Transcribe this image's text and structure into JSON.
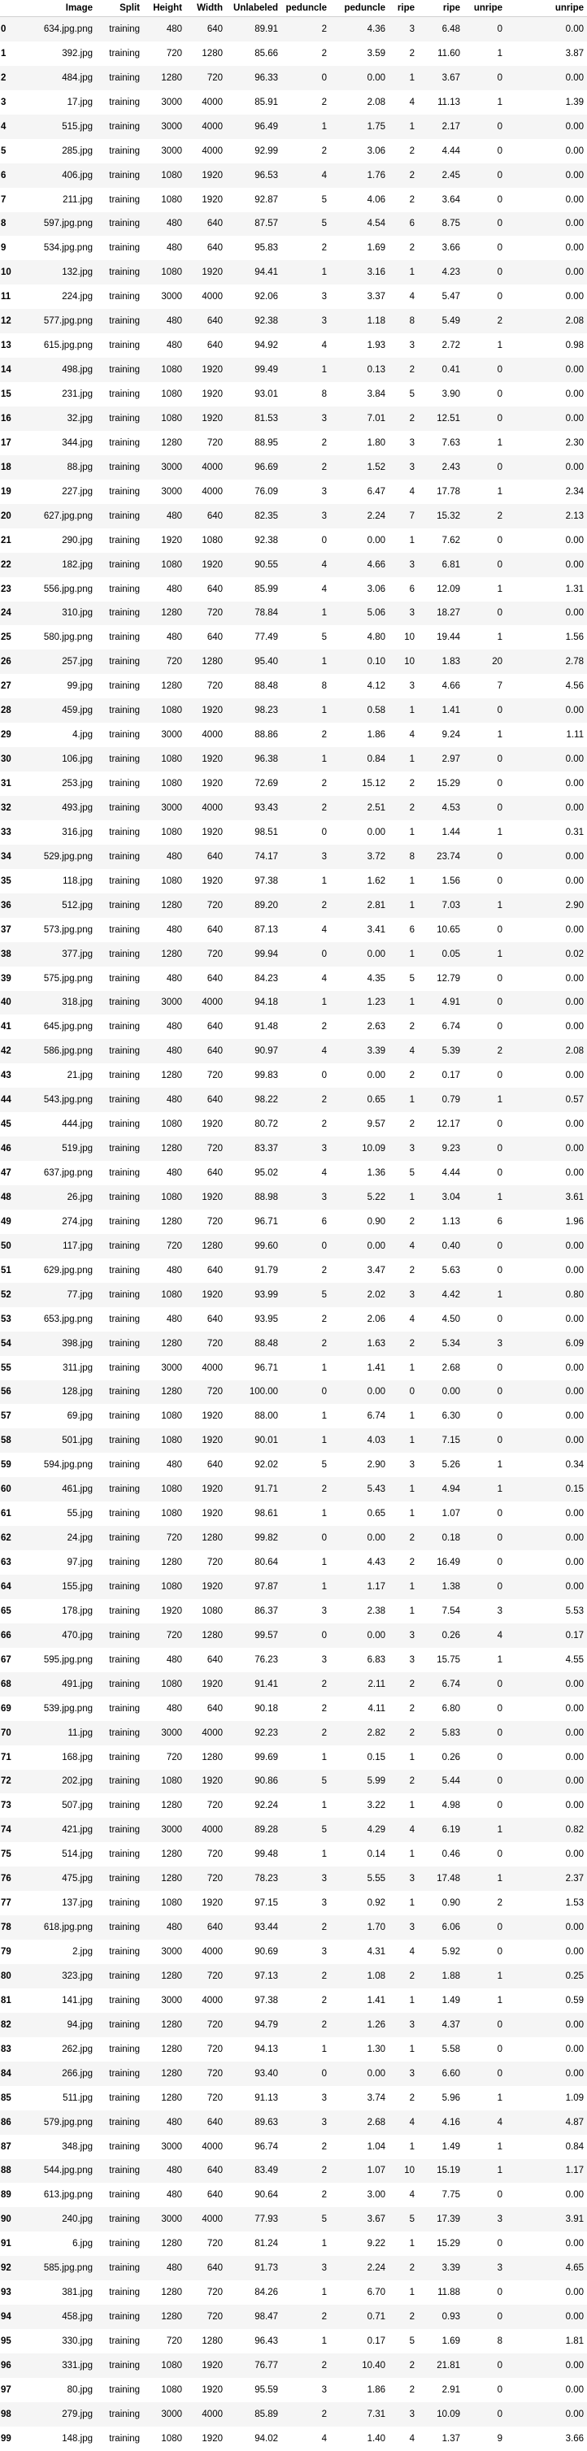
{
  "columns": [
    "",
    "Image",
    "Split",
    "Height",
    "Width",
    "Unlabeled",
    "peduncle",
    "peduncle",
    "ripe",
    "ripe",
    "unripe",
    "unripe"
  ],
  "rows": [
    [
      "0",
      "634.jpg.png",
      "training",
      "480",
      "640",
      "89.91",
      "2",
      "4.36",
      "3",
      "6.48",
      "0",
      "0.00"
    ],
    [
      "1",
      "392.jpg",
      "training",
      "720",
      "1280",
      "85.66",
      "2",
      "3.59",
      "2",
      "11.60",
      "1",
      "3.87"
    ],
    [
      "2",
      "484.jpg",
      "training",
      "1280",
      "720",
      "96.33",
      "0",
      "0.00",
      "1",
      "3.67",
      "0",
      "0.00"
    ],
    [
      "3",
      "17.jpg",
      "training",
      "3000",
      "4000",
      "85.91",
      "2",
      "2.08",
      "4",
      "11.13",
      "1",
      "1.39"
    ],
    [
      "4",
      "515.jpg",
      "training",
      "3000",
      "4000",
      "96.49",
      "1",
      "1.75",
      "1",
      "2.17",
      "0",
      "0.00"
    ],
    [
      "5",
      "285.jpg",
      "training",
      "3000",
      "4000",
      "92.99",
      "2",
      "3.06",
      "2",
      "4.44",
      "0",
      "0.00"
    ],
    [
      "6",
      "406.jpg",
      "training",
      "1080",
      "1920",
      "96.53",
      "4",
      "1.76",
      "2",
      "2.45",
      "0",
      "0.00"
    ],
    [
      "7",
      "211.jpg",
      "training",
      "1080",
      "1920",
      "92.87",
      "5",
      "4.06",
      "2",
      "3.64",
      "0",
      "0.00"
    ],
    [
      "8",
      "597.jpg.png",
      "training",
      "480",
      "640",
      "87.57",
      "5",
      "4.54",
      "6",
      "8.75",
      "0",
      "0.00"
    ],
    [
      "9",
      "534.jpg.png",
      "training",
      "480",
      "640",
      "95.83",
      "2",
      "1.69",
      "2",
      "3.66",
      "0",
      "0.00"
    ],
    [
      "10",
      "132.jpg",
      "training",
      "1080",
      "1920",
      "94.41",
      "1",
      "3.16",
      "1",
      "4.23",
      "0",
      "0.00"
    ],
    [
      "11",
      "224.jpg",
      "training",
      "3000",
      "4000",
      "92.06",
      "3",
      "3.37",
      "4",
      "5.47",
      "0",
      "0.00"
    ],
    [
      "12",
      "577.jpg.png",
      "training",
      "480",
      "640",
      "92.38",
      "3",
      "1.18",
      "8",
      "5.49",
      "2",
      "2.08"
    ],
    [
      "13",
      "615.jpg.png",
      "training",
      "480",
      "640",
      "94.92",
      "4",
      "1.93",
      "3",
      "2.72",
      "1",
      "0.98"
    ],
    [
      "14",
      "498.jpg",
      "training",
      "1080",
      "1920",
      "99.49",
      "1",
      "0.13",
      "2",
      "0.41",
      "0",
      "0.00"
    ],
    [
      "15",
      "231.jpg",
      "training",
      "1080",
      "1920",
      "93.01",
      "8",
      "3.84",
      "5",
      "3.90",
      "0",
      "0.00"
    ],
    [
      "16",
      "32.jpg",
      "training",
      "1080",
      "1920",
      "81.53",
      "3",
      "7.01",
      "2",
      "12.51",
      "0",
      "0.00"
    ],
    [
      "17",
      "344.jpg",
      "training",
      "1280",
      "720",
      "88.95",
      "2",
      "1.80",
      "3",
      "7.63",
      "1",
      "2.30"
    ],
    [
      "18",
      "88.jpg",
      "training",
      "3000",
      "4000",
      "96.69",
      "2",
      "1.52",
      "3",
      "2.43",
      "0",
      "0.00"
    ],
    [
      "19",
      "227.jpg",
      "training",
      "3000",
      "4000",
      "76.09",
      "3",
      "6.47",
      "4",
      "17.78",
      "1",
      "2.34"
    ],
    [
      "20",
      "627.jpg.png",
      "training",
      "480",
      "640",
      "82.35",
      "3",
      "2.24",
      "7",
      "15.32",
      "2",
      "2.13"
    ],
    [
      "21",
      "290.jpg",
      "training",
      "1920",
      "1080",
      "92.38",
      "0",
      "0.00",
      "1",
      "7.62",
      "0",
      "0.00"
    ],
    [
      "22",
      "182.jpg",
      "training",
      "1080",
      "1920",
      "90.55",
      "4",
      "4.66",
      "3",
      "6.81",
      "0",
      "0.00"
    ],
    [
      "23",
      "556.jpg.png",
      "training",
      "480",
      "640",
      "85.99",
      "4",
      "3.06",
      "6",
      "12.09",
      "1",
      "1.31"
    ],
    [
      "24",
      "310.jpg",
      "training",
      "1280",
      "720",
      "78.84",
      "1",
      "5.06",
      "3",
      "18.27",
      "0",
      "0.00"
    ],
    [
      "25",
      "580.jpg.png",
      "training",
      "480",
      "640",
      "77.49",
      "5",
      "4.80",
      "10",
      "19.44",
      "1",
      "1.56"
    ],
    [
      "26",
      "257.jpg",
      "training",
      "720",
      "1280",
      "95.40",
      "1",
      "0.10",
      "10",
      "1.83",
      "20",
      "2.78"
    ],
    [
      "27",
      "99.jpg",
      "training",
      "1280",
      "720",
      "88.48",
      "8",
      "4.12",
      "3",
      "4.66",
      "7",
      "4.56"
    ],
    [
      "28",
      "459.jpg",
      "training",
      "1080",
      "1920",
      "98.23",
      "1",
      "0.58",
      "1",
      "1.41",
      "0",
      "0.00"
    ],
    [
      "29",
      "4.jpg",
      "training",
      "3000",
      "4000",
      "88.86",
      "2",
      "1.86",
      "4",
      "9.24",
      "1",
      "1.11"
    ],
    [
      "30",
      "106.jpg",
      "training",
      "1080",
      "1920",
      "96.38",
      "1",
      "0.84",
      "1",
      "2.97",
      "0",
      "0.00"
    ],
    [
      "31",
      "253.jpg",
      "training",
      "1080",
      "1920",
      "72.69",
      "2",
      "15.12",
      "2",
      "15.29",
      "0",
      "0.00"
    ],
    [
      "32",
      "493.jpg",
      "training",
      "3000",
      "4000",
      "93.43",
      "2",
      "2.51",
      "2",
      "4.53",
      "0",
      "0.00"
    ],
    [
      "33",
      "316.jpg",
      "training",
      "1080",
      "1920",
      "98.51",
      "0",
      "0.00",
      "1",
      "1.44",
      "1",
      "0.31"
    ],
    [
      "34",
      "529.jpg.png",
      "training",
      "480",
      "640",
      "74.17",
      "3",
      "3.72",
      "8",
      "23.74",
      "0",
      "0.00"
    ],
    [
      "35",
      "118.jpg",
      "training",
      "1080",
      "1920",
      "97.38",
      "1",
      "1.62",
      "1",
      "1.56",
      "0",
      "0.00"
    ],
    [
      "36",
      "512.jpg",
      "training",
      "1280",
      "720",
      "89.20",
      "2",
      "2.81",
      "1",
      "7.03",
      "1",
      "2.90"
    ],
    [
      "37",
      "573.jpg.png",
      "training",
      "480",
      "640",
      "87.13",
      "4",
      "3.41",
      "6",
      "10.65",
      "0",
      "0.00"
    ],
    [
      "38",
      "377.jpg",
      "training",
      "1280",
      "720",
      "99.94",
      "0",
      "0.00",
      "1",
      "0.05",
      "1",
      "0.02"
    ],
    [
      "39",
      "575.jpg.png",
      "training",
      "480",
      "640",
      "84.23",
      "4",
      "4.35",
      "5",
      "12.79",
      "0",
      "0.00"
    ],
    [
      "40",
      "318.jpg",
      "training",
      "3000",
      "4000",
      "94.18",
      "1",
      "1.23",
      "1",
      "4.91",
      "0",
      "0.00"
    ],
    [
      "41",
      "645.jpg.png",
      "training",
      "480",
      "640",
      "91.48",
      "2",
      "2.63",
      "2",
      "6.74",
      "0",
      "0.00"
    ],
    [
      "42",
      "586.jpg.png",
      "training",
      "480",
      "640",
      "90.97",
      "4",
      "3.39",
      "4",
      "5.39",
      "2",
      "2.08"
    ],
    [
      "43",
      "21.jpg",
      "training",
      "1280",
      "720",
      "99.83",
      "0",
      "0.00",
      "2",
      "0.17",
      "0",
      "0.00"
    ],
    [
      "44",
      "543.jpg.png",
      "training",
      "480",
      "640",
      "98.22",
      "2",
      "0.65",
      "1",
      "0.79",
      "1",
      "0.57"
    ],
    [
      "45",
      "444.jpg",
      "training",
      "1080",
      "1920",
      "80.72",
      "2",
      "9.57",
      "2",
      "12.17",
      "0",
      "0.00"
    ],
    [
      "46",
      "519.jpg",
      "training",
      "1280",
      "720",
      "83.37",
      "3",
      "10.09",
      "3",
      "9.23",
      "0",
      "0.00"
    ],
    [
      "47",
      "637.jpg.png",
      "training",
      "480",
      "640",
      "95.02",
      "4",
      "1.36",
      "5",
      "4.44",
      "0",
      "0.00"
    ],
    [
      "48",
      "26.jpg",
      "training",
      "1080",
      "1920",
      "88.98",
      "3",
      "5.22",
      "1",
      "3.04",
      "1",
      "3.61"
    ],
    [
      "49",
      "274.jpg",
      "training",
      "1280",
      "720",
      "96.71",
      "6",
      "0.90",
      "2",
      "1.13",
      "6",
      "1.96"
    ],
    [
      "50",
      "117.jpg",
      "training",
      "720",
      "1280",
      "99.60",
      "0",
      "0.00",
      "4",
      "0.40",
      "0",
      "0.00"
    ],
    [
      "51",
      "629.jpg.png",
      "training",
      "480",
      "640",
      "91.79",
      "2",
      "3.47",
      "2",
      "5.63",
      "0",
      "0.00"
    ],
    [
      "52",
      "77.jpg",
      "training",
      "1080",
      "1920",
      "93.99",
      "5",
      "2.02",
      "3",
      "4.42",
      "1",
      "0.80"
    ],
    [
      "53",
      "653.jpg.png",
      "training",
      "480",
      "640",
      "93.95",
      "2",
      "2.06",
      "4",
      "4.50",
      "0",
      "0.00"
    ],
    [
      "54",
      "398.jpg",
      "training",
      "1280",
      "720",
      "88.48",
      "2",
      "1.63",
      "2",
      "5.34",
      "3",
      "6.09"
    ],
    [
      "55",
      "311.jpg",
      "training",
      "3000",
      "4000",
      "96.71",
      "1",
      "1.41",
      "1",
      "2.68",
      "0",
      "0.00"
    ],
    [
      "56",
      "128.jpg",
      "training",
      "1280",
      "720",
      "100.00",
      "0",
      "0.00",
      "0",
      "0.00",
      "0",
      "0.00"
    ],
    [
      "57",
      "69.jpg",
      "training",
      "1080",
      "1920",
      "88.00",
      "1",
      "6.74",
      "1",
      "6.30",
      "0",
      "0.00"
    ],
    [
      "58",
      "501.jpg",
      "training",
      "1080",
      "1920",
      "90.01",
      "1",
      "4.03",
      "1",
      "7.15",
      "0",
      "0.00"
    ],
    [
      "59",
      "594.jpg.png",
      "training",
      "480",
      "640",
      "92.02",
      "5",
      "2.90",
      "3",
      "5.26",
      "1",
      "0.34"
    ],
    [
      "60",
      "461.jpg",
      "training",
      "1080",
      "1920",
      "91.71",
      "2",
      "5.43",
      "1",
      "4.94",
      "1",
      "0.15"
    ],
    [
      "61",
      "55.jpg",
      "training",
      "1080",
      "1920",
      "98.61",
      "1",
      "0.65",
      "1",
      "1.07",
      "0",
      "0.00"
    ],
    [
      "62",
      "24.jpg",
      "training",
      "720",
      "1280",
      "99.82",
      "0",
      "0.00",
      "2",
      "0.18",
      "0",
      "0.00"
    ],
    [
      "63",
      "97.jpg",
      "training",
      "1280",
      "720",
      "80.64",
      "1",
      "4.43",
      "2",
      "16.49",
      "0",
      "0.00"
    ],
    [
      "64",
      "155.jpg",
      "training",
      "1080",
      "1920",
      "97.87",
      "1",
      "1.17",
      "1",
      "1.38",
      "0",
      "0.00"
    ],
    [
      "65",
      "178.jpg",
      "training",
      "1920",
      "1080",
      "86.37",
      "3",
      "2.38",
      "1",
      "7.54",
      "3",
      "5.53"
    ],
    [
      "66",
      "470.jpg",
      "training",
      "720",
      "1280",
      "99.57",
      "0",
      "0.00",
      "3",
      "0.26",
      "4",
      "0.17"
    ],
    [
      "67",
      "595.jpg.png",
      "training",
      "480",
      "640",
      "76.23",
      "3",
      "6.83",
      "3",
      "15.75",
      "1",
      "4.55"
    ],
    [
      "68",
      "491.jpg",
      "training",
      "1080",
      "1920",
      "91.41",
      "2",
      "2.11",
      "2",
      "6.74",
      "0",
      "0.00"
    ],
    [
      "69",
      "539.jpg.png",
      "training",
      "480",
      "640",
      "90.18",
      "2",
      "4.11",
      "2",
      "6.80",
      "0",
      "0.00"
    ],
    [
      "70",
      "11.jpg",
      "training",
      "3000",
      "4000",
      "92.23",
      "2",
      "2.82",
      "2",
      "5.83",
      "0",
      "0.00"
    ],
    [
      "71",
      "168.jpg",
      "training",
      "720",
      "1280",
      "99.69",
      "1",
      "0.15",
      "1",
      "0.26",
      "0",
      "0.00"
    ],
    [
      "72",
      "202.jpg",
      "training",
      "1080",
      "1920",
      "90.86",
      "5",
      "5.99",
      "2",
      "5.44",
      "0",
      "0.00"
    ],
    [
      "73",
      "507.jpg",
      "training",
      "1280",
      "720",
      "92.24",
      "1",
      "3.22",
      "1",
      "4.98",
      "0",
      "0.00"
    ],
    [
      "74",
      "421.jpg",
      "training",
      "3000",
      "4000",
      "89.28",
      "5",
      "4.29",
      "4",
      "6.19",
      "1",
      "0.82"
    ],
    [
      "75",
      "514.jpg",
      "training",
      "1280",
      "720",
      "99.48",
      "1",
      "0.14",
      "1",
      "0.46",
      "0",
      "0.00"
    ],
    [
      "76",
      "475.jpg",
      "training",
      "1280",
      "720",
      "78.23",
      "3",
      "5.55",
      "3",
      "17.48",
      "1",
      "2.37"
    ],
    [
      "77",
      "137.jpg",
      "training",
      "1080",
      "1920",
      "97.15",
      "3",
      "0.92",
      "1",
      "0.90",
      "2",
      "1.53"
    ],
    [
      "78",
      "618.jpg.png",
      "training",
      "480",
      "640",
      "93.44",
      "2",
      "1.70",
      "3",
      "6.06",
      "0",
      "0.00"
    ],
    [
      "79",
      "2.jpg",
      "training",
      "3000",
      "4000",
      "90.69",
      "3",
      "4.31",
      "4",
      "5.92",
      "0",
      "0.00"
    ],
    [
      "80",
      "323.jpg",
      "training",
      "1280",
      "720",
      "97.13",
      "2",
      "1.08",
      "2",
      "1.88",
      "1",
      "0.25"
    ],
    [
      "81",
      "141.jpg",
      "training",
      "3000",
      "4000",
      "97.38",
      "2",
      "1.41",
      "1",
      "1.49",
      "1",
      "0.59"
    ],
    [
      "82",
      "94.jpg",
      "training",
      "1280",
      "720",
      "94.79",
      "2",
      "1.26",
      "3",
      "4.37",
      "0",
      "0.00"
    ],
    [
      "83",
      "262.jpg",
      "training",
      "1280",
      "720",
      "94.13",
      "1",
      "1.30",
      "1",
      "5.58",
      "0",
      "0.00"
    ],
    [
      "84",
      "266.jpg",
      "training",
      "1280",
      "720",
      "93.40",
      "0",
      "0.00",
      "3",
      "6.60",
      "0",
      "0.00"
    ],
    [
      "85",
      "511.jpg",
      "training",
      "1280",
      "720",
      "91.13",
      "3",
      "3.74",
      "2",
      "5.96",
      "1",
      "1.09"
    ],
    [
      "86",
      "579.jpg.png",
      "training",
      "480",
      "640",
      "89.63",
      "3",
      "2.68",
      "4",
      "4.16",
      "4",
      "4.87"
    ],
    [
      "87",
      "348.jpg",
      "training",
      "3000",
      "4000",
      "96.74",
      "2",
      "1.04",
      "1",
      "1.49",
      "1",
      "0.84"
    ],
    [
      "88",
      "544.jpg.png",
      "training",
      "480",
      "640",
      "83.49",
      "2",
      "1.07",
      "10",
      "15.19",
      "1",
      "1.17"
    ],
    [
      "89",
      "613.jpg.png",
      "training",
      "480",
      "640",
      "90.64",
      "2",
      "3.00",
      "4",
      "7.75",
      "0",
      "0.00"
    ],
    [
      "90",
      "240.jpg",
      "training",
      "3000",
      "4000",
      "77.93",
      "5",
      "3.67",
      "5",
      "17.39",
      "3",
      "3.91"
    ],
    [
      "91",
      "6.jpg",
      "training",
      "1280",
      "720",
      "81.24",
      "1",
      "9.22",
      "1",
      "15.29",
      "0",
      "0.00"
    ],
    [
      "92",
      "585.jpg.png",
      "training",
      "480",
      "640",
      "91.73",
      "3",
      "2.24",
      "2",
      "3.39",
      "3",
      "4.65"
    ],
    [
      "93",
      "381.jpg",
      "training",
      "1280",
      "720",
      "84.26",
      "1",
      "6.70",
      "1",
      "11.88",
      "0",
      "0.00"
    ],
    [
      "94",
      "458.jpg",
      "training",
      "1280",
      "720",
      "98.47",
      "2",
      "0.71",
      "2",
      "0.93",
      "0",
      "0.00"
    ],
    [
      "95",
      "330.jpg",
      "training",
      "720",
      "1280",
      "96.43",
      "1",
      "0.17",
      "5",
      "1.69",
      "8",
      "1.81"
    ],
    [
      "96",
      "331.jpg",
      "training",
      "1080",
      "1920",
      "76.77",
      "2",
      "10.40",
      "2",
      "21.81",
      "0",
      "0.00"
    ],
    [
      "97",
      "80.jpg",
      "training",
      "1080",
      "1920",
      "95.59",
      "3",
      "1.86",
      "2",
      "2.91",
      "0",
      "0.00"
    ],
    [
      "98",
      "279.jpg",
      "training",
      "3000",
      "4000",
      "85.89",
      "2",
      "7.31",
      "3",
      "10.09",
      "0",
      "0.00"
    ],
    [
      "99",
      "148.jpg",
      "training",
      "1080",
      "1920",
      "94.02",
      "4",
      "1.40",
      "4",
      "1.37",
      "9",
      "3.66"
    ]
  ]
}
